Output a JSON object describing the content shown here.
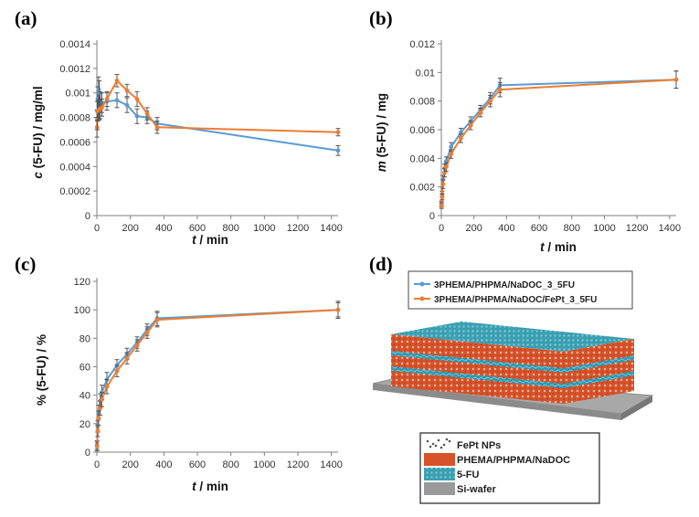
{
  "colors": {
    "series_a": "#5b9bd5",
    "series_b": "#ed7d31",
    "axis": "#7f7f7f",
    "film_top": "#3a9fb0",
    "polymer": "#d7532a",
    "wafer": "#9a9a9a"
  },
  "chart_data": [
    {
      "panel": "(a)",
      "type": "line",
      "title": "",
      "xlabel_italic": "t",
      "xlabel_rest": " / min",
      "ylabel_italic": "c",
      "ylabel_rest": " (5-FU) / mg/ml",
      "xlim": [
        0,
        1440
      ],
      "ylim": [
        0,
        0.0014
      ],
      "xticks": [
        "0",
        "200",
        "400",
        "600",
        "800",
        "1000",
        "1200",
        "1400"
      ],
      "xtick_values": [
        0,
        200,
        400,
        600,
        800,
        1000,
        1200,
        1400
      ],
      "yticks": [
        "0",
        "0.0002",
        "0.0004",
        "0.0006",
        "0.0008",
        "0.001",
        "0.0012",
        "0.0014"
      ],
      "ytick_values": [
        0,
        0.0002,
        0.0004,
        0.0006,
        0.0008,
        0.001,
        0.0012,
        0.0014
      ],
      "series": [
        {
          "name": "3PHEMA/PHPMA/NaDOC_3_5FU",
          "x": [
            1,
            3,
            5,
            10,
            15,
            20,
            30,
            60,
            120,
            180,
            240,
            300,
            360,
            1440
          ],
          "y": [
            0.00078,
            0.00085,
            0.00095,
            0.00103,
            0.001,
            0.00093,
            0.00092,
            0.00093,
            0.00094,
            0.0009,
            0.00081,
            0.0008,
            0.00075,
            0.00053
          ],
          "err": [
            8e-05,
            8e-05,
            0.0001,
            0.0001,
            0.0001,
            8e-05,
            8e-05,
            7e-05,
            6e-05,
            6e-05,
            6e-05,
            5e-05,
            5e-05,
            4e-05
          ]
        },
        {
          "name": "3PHEMA/PHPMA/NaDOC/FePt_3_5FU",
          "x": [
            1,
            3,
            5,
            10,
            15,
            20,
            30,
            60,
            120,
            180,
            240,
            300,
            360,
            1440
          ],
          "y": [
            0.00072,
            0.00078,
            0.00085,
            0.00086,
            0.00086,
            0.00087,
            0.00088,
            0.00095,
            0.0011,
            0.00102,
            0.00095,
            0.00083,
            0.00072,
            0.00068
          ],
          "err": [
            8e-05,
            8e-05,
            8e-05,
            8e-05,
            8e-05,
            8e-05,
            7e-05,
            6e-05,
            5e-05,
            5e-05,
            6e-05,
            5e-05,
            5e-05,
            3e-05
          ]
        }
      ]
    },
    {
      "panel": "(b)",
      "type": "line",
      "title": "",
      "xlabel_italic": "t",
      "xlabel_rest": " / min",
      "ylabel_italic": "m",
      "ylabel_rest": " (5-FU) / mg",
      "xlim": [
        0,
        1440
      ],
      "ylim": [
        0,
        0.012
      ],
      "xticks": [
        "0",
        "200",
        "400",
        "600",
        "800",
        "1000",
        "1200",
        "1400"
      ],
      "xtick_values": [
        0,
        200,
        400,
        600,
        800,
        1000,
        1200,
        1400
      ],
      "yticks": [
        "0",
        "0.002",
        "0.004",
        "0.006",
        "0.008",
        "0.01",
        "0.012"
      ],
      "ytick_values": [
        0,
        0.002,
        0.004,
        0.006,
        0.008,
        0.01,
        0.012
      ],
      "series": [
        {
          "name": "3PHEMA/PHPMA/NaDOC_3_5FU",
          "x": [
            1,
            5,
            10,
            20,
            30,
            60,
            120,
            180,
            240,
            300,
            360,
            1440
          ],
          "y": [
            0.0008,
            0.0015,
            0.0025,
            0.0033,
            0.0038,
            0.0048,
            0.0058,
            0.0066,
            0.0074,
            0.0082,
            0.0091,
            0.0095
          ],
          "err": [
            0.0002,
            0.0002,
            0.0003,
            0.0003,
            0.0003,
            0.0003,
            0.0003,
            0.0003,
            0.0003,
            0.0004,
            0.0005,
            0.0006
          ]
        },
        {
          "name": "3PHEMA/PHPMA/NaDOC/FePt_3_5FU",
          "x": [
            1,
            5,
            10,
            20,
            30,
            60,
            120,
            180,
            240,
            300,
            360,
            1440
          ],
          "y": [
            0.0007,
            0.0013,
            0.0022,
            0.003,
            0.0034,
            0.0043,
            0.0054,
            0.0063,
            0.0072,
            0.008,
            0.0088,
            0.0095
          ],
          "err": [
            0.0002,
            0.0002,
            0.0003,
            0.0003,
            0.0003,
            0.0003,
            0.0003,
            0.0003,
            0.0003,
            0.0004,
            0.0005,
            0.0006
          ]
        }
      ]
    },
    {
      "panel": "(c)",
      "type": "line",
      "title": "",
      "xlabel_italic": "t",
      "xlabel_rest": " / min",
      "ylabel_italic": "",
      "ylabel_rest": "% (5-FU) / %",
      "xlim": [
        0,
        1440
      ],
      "ylim": [
        0,
        120
      ],
      "xticks": [
        "0",
        "200",
        "400",
        "600",
        "800",
        "1000",
        "1200",
        "1400"
      ],
      "xtick_values": [
        0,
        200,
        400,
        600,
        800,
        1000,
        1200,
        1400
      ],
      "yticks": [
        "0",
        "20",
        "40",
        "60",
        "80",
        "100",
        "120"
      ],
      "ytick_values": [
        0,
        20,
        40,
        60,
        80,
        100,
        120
      ],
      "series": [
        {
          "name": "3PHEMA/PHPMA/NaDOC_3_5FU",
          "x": [
            1,
            5,
            10,
            20,
            30,
            60,
            120,
            180,
            240,
            300,
            360,
            1440
          ],
          "y": [
            5,
            18,
            28,
            36,
            42,
            51,
            61,
            69,
            77,
            86,
            94,
            100
          ],
          "err": [
            3,
            4,
            5,
            5,
            5,
            5,
            4,
            4,
            4,
            4,
            5,
            6
          ]
        },
        {
          "name": "3PHEMA/PHPMA/NaDOC/FePt_3_5FU",
          "x": [
            1,
            5,
            10,
            20,
            30,
            60,
            120,
            180,
            240,
            300,
            360,
            1440
          ],
          "y": [
            4,
            15,
            24,
            31,
            37,
            46,
            57,
            66,
            75,
            84,
            93,
            100
          ],
          "err": [
            3,
            4,
            5,
            5,
            5,
            5,
            4,
            4,
            4,
            4,
            5,
            5
          ]
        }
      ]
    }
  ],
  "schematic": {
    "panel": "(d)",
    "legend": [
      "3PHEMA/PHPMA/NaDOC_3_5FU",
      "3PHEMA/PHPMA/NaDOC/FePt_3_5FU"
    ],
    "key": [
      "FePt NPs",
      "PHEMA/PHPMA/NaDOC",
      "5-FU",
      "Si-wafer"
    ]
  }
}
